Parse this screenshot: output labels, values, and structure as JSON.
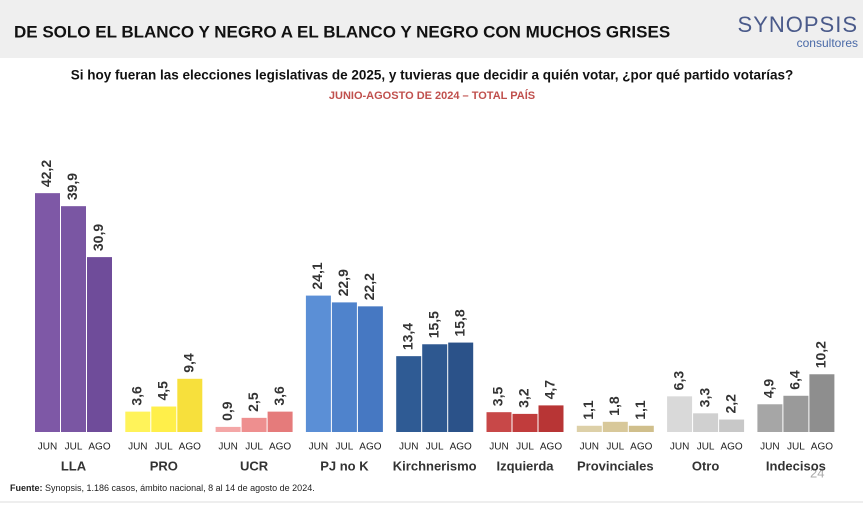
{
  "chart_data": {
    "type": "bar",
    "title": "DE SOLO EL BLANCO Y NEGRO A EL BLANCO Y NEGRO CON MUCHOS GRISES",
    "brand": "SYNOPSIS",
    "brand_sub": "consultores",
    "subtitle": "Si hoy fueran las elecciones legislativas de 2025, y tuvieras que decidir a quién votar, ¿por qué partido votarías?",
    "period": "JUNIO-AGOSTO DE 2024 – TOTAL PAÍS",
    "source_label": "Fuente:",
    "source": "Synopsis, 1.186 casos, ámbito nacional, 8 al 14 de agosto de 2024.",
    "page_number": "24",
    "sub_categories": [
      "JUN",
      "JUL",
      "AGO"
    ],
    "groups": [
      {
        "name": "LLA",
        "values": [
          42.2,
          39.9,
          30.9
        ],
        "value_labels": [
          "42,2",
          "39,9",
          "30,9"
        ],
        "colors": [
          "#7e58a6",
          "#7a56a3",
          "#6f4c9a"
        ]
      },
      {
        "name": "PRO",
        "values": [
          3.6,
          4.5,
          9.4
        ],
        "value_labels": [
          "3,6",
          "4,5",
          "9,4"
        ],
        "colors": [
          "#fff35a",
          "#ffef4a",
          "#f7e03c"
        ]
      },
      {
        "name": "UCR",
        "values": [
          0.9,
          2.5,
          3.6
        ],
        "value_labels": [
          "0,9",
          "2,5",
          "3,6"
        ],
        "colors": [
          "#f4a7a7",
          "#ee8f8f",
          "#e57b7b"
        ]
      },
      {
        "name": "PJ no K",
        "values": [
          24.1,
          22.9,
          22.2
        ],
        "value_labels": [
          "24,1",
          "22,9",
          "22,2"
        ],
        "colors": [
          "#5b8fd6",
          "#4f83cc",
          "#4678c2"
        ]
      },
      {
        "name": "Kirchnerismo",
        "values": [
          13.4,
          15.5,
          15.8
        ],
        "value_labels": [
          "13,4",
          "15,5",
          "15,8"
        ],
        "colors": [
          "#2f5b94",
          "#2e5890",
          "#2b5289"
        ]
      },
      {
        "name": "Izquierda",
        "values": [
          3.5,
          3.2,
          4.7
        ],
        "value_labels": [
          "3,5",
          "3,2",
          "4,7"
        ],
        "colors": [
          "#c84848",
          "#c13c3c",
          "#b83535"
        ]
      },
      {
        "name": "Provinciales",
        "values": [
          1.1,
          1.8,
          1.1
        ],
        "value_labels": [
          "1,1",
          "1,8",
          "1,1"
        ],
        "colors": [
          "#ddd0a8",
          "#d8c89a",
          "#d0bf8c"
        ]
      },
      {
        "name": "Otro",
        "values": [
          6.3,
          3.3,
          2.2
        ],
        "value_labels": [
          "6,3",
          "3,3",
          "2,2"
        ],
        "colors": [
          "#d9d9d9",
          "#d0d0d0",
          "#c8c8c8"
        ]
      },
      {
        "name": "Indecisos",
        "values": [
          4.9,
          6.4,
          10.2
        ],
        "value_labels": [
          "4,9",
          "6,4",
          "10,2"
        ],
        "colors": [
          "#a6a6a6",
          "#9a9a9a",
          "#8e8e8e"
        ]
      }
    ]
  }
}
